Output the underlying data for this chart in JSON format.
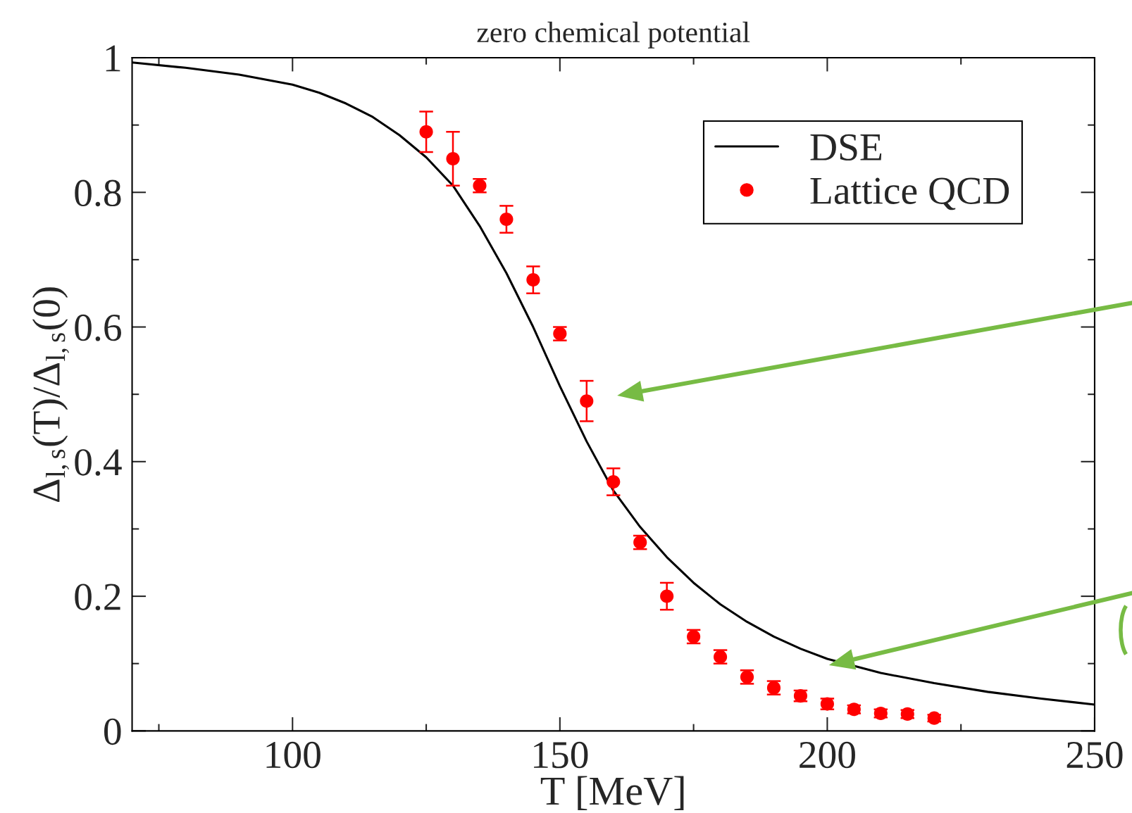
{
  "chart_data": {
    "type": "line",
    "title": "zero chemical potential",
    "xlabel": "T [MeV]",
    "ylabel": "Δ$_{l,s}$(T)/Δ$_{l,s}$(0)",
    "xlim": [
      70,
      250
    ],
    "ylim": [
      0,
      1
    ],
    "xticks": [
      {
        "value": 75,
        "label": null
      },
      100,
      {
        "value": 125,
        "label": null
      },
      150,
      {
        "value": 175,
        "label": null
      },
      200,
      {
        "value": 225,
        "label": null
      },
      250
    ],
    "yticks": [
      0,
      {
        "value": 0.1,
        "label": null
      },
      0.2,
      {
        "value": 0.3,
        "label": null
      },
      0.4,
      {
        "value": 0.5,
        "label": null
      },
      0.6,
      {
        "value": 0.7,
        "label": null
      },
      0.8,
      {
        "value": 0.9,
        "label": null
      },
      1
    ],
    "grid": false,
    "legend": "top right",
    "series": [
      {
        "name": "DSE",
        "type": "line",
        "color": "#000000",
        "line_style": "solid",
        "marker": "none",
        "x": [
          70,
          80,
          90,
          100,
          105,
          110,
          115,
          120,
          125,
          130,
          135,
          140,
          145,
          150,
          155,
          160,
          165,
          170,
          175,
          180,
          185,
          190,
          195,
          200,
          210,
          220,
          230,
          240,
          250
        ],
        "values": [
          0.993,
          0.985,
          0.975,
          0.96,
          0.948,
          0.932,
          0.912,
          0.885,
          0.852,
          0.81,
          0.75,
          0.68,
          0.6,
          0.512,
          0.43,
          0.357,
          0.303,
          0.258,
          0.22,
          0.188,
          0.162,
          0.14,
          0.122,
          0.107,
          0.086,
          0.071,
          0.058,
          0.048,
          0.039
        ]
      },
      {
        "name": "Lattice QCD",
        "type": "scatter",
        "color": "#ff0000",
        "marker": "circle",
        "x": [
          125,
          130,
          135,
          140,
          145,
          150,
          155,
          160,
          165,
          170,
          175,
          180,
          185,
          190,
          195,
          200,
          205,
          210,
          215,
          220
        ],
        "values": [
          0.89,
          0.85,
          0.81,
          0.76,
          0.67,
          0.59,
          0.49,
          0.37,
          0.28,
          0.2,
          0.14,
          0.11,
          0.08,
          0.064,
          0.052,
          0.04,
          0.032,
          0.026,
          0.025,
          0.019
        ],
        "errors": [
          0.03,
          0.04,
          0.01,
          0.02,
          0.02,
          0.01,
          0.03,
          0.02,
          0.01,
          0.02,
          0.01,
          0.01,
          0.01,
          0.01,
          0.008,
          0.008,
          0.006,
          0.006,
          0.006,
          0.005
        ]
      }
    ]
  }
}
